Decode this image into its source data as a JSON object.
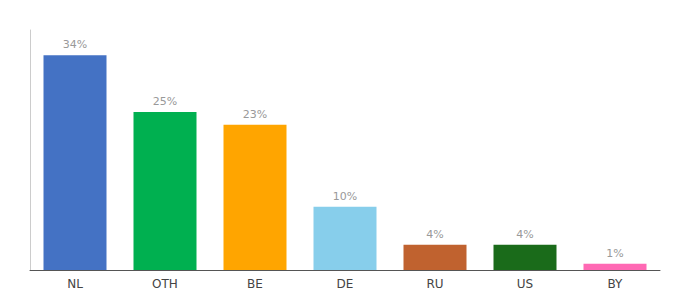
{
  "chart_data": {
    "type": "bar",
    "categories": [
      "NL",
      "OTH",
      "BE",
      "DE",
      "RU",
      "US",
      "BY"
    ],
    "values": [
      34,
      25,
      23,
      10,
      4,
      4,
      1
    ],
    "value_labels": [
      "34%",
      "25%",
      "23%",
      "10%",
      "4%",
      "4%",
      "1%"
    ],
    "colors": [
      "#4472C4",
      "#00B050",
      "#FFA500",
      "#87CEEB",
      "#C0622F",
      "#1A6B1A",
      "#FF69B4"
    ],
    "data_labels": true,
    "ylim": [
      0,
      38
    ],
    "tick_labels": "x",
    "grid": false
  }
}
